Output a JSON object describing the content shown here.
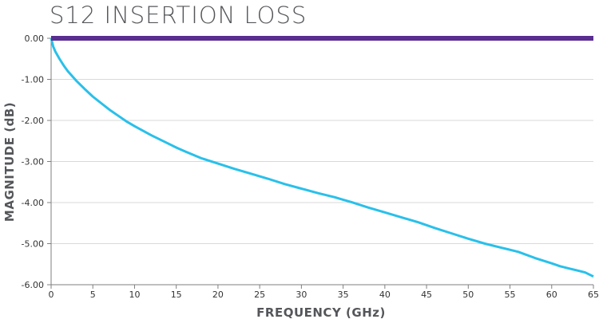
{
  "chart_data": {
    "type": "line",
    "title": "S12 INSERTION LOSS",
    "xlabel": "FREQUENCY (GHz)",
    "ylabel": "MAGNITUDE (dB)",
    "xlim": [
      0,
      65
    ],
    "ylim": [
      -6.0,
      0.0
    ],
    "x_ticks": [
      0,
      5,
      10,
      15,
      20,
      25,
      30,
      35,
      40,
      45,
      50,
      55,
      60,
      65
    ],
    "y_ticks": [
      0.0,
      -1.0,
      -2.0,
      -3.0,
      -4.0,
      -5.0,
      -6.0
    ],
    "x_tick_labels": [
      "0",
      "5",
      "10",
      "15",
      "20",
      "25",
      "30",
      "35",
      "40",
      "45",
      "50",
      "55",
      "60",
      "65"
    ],
    "y_tick_labels": [
      "0.00",
      "-1.00",
      "-2.00",
      "-3.00",
      "-4.00",
      "-5.00",
      "-6.00"
    ],
    "grid": "horizontal",
    "series": [
      {
        "color": "#29c0ea",
        "x": [
          0,
          0.25,
          0.5,
          1,
          1.5,
          2,
          3,
          4,
          5,
          6,
          7,
          8,
          9,
          10,
          12,
          14,
          15,
          16,
          18,
          20,
          22,
          24,
          25,
          26,
          28,
          30,
          32,
          34,
          35,
          36,
          38,
          40,
          42,
          44,
          45,
          46,
          48,
          50,
          52,
          54,
          55,
          56,
          58,
          60,
          61,
          62,
          63,
          64,
          65
        ],
        "y": [
          0.0,
          -0.2,
          -0.32,
          -0.5,
          -0.66,
          -0.8,
          -1.03,
          -1.23,
          -1.42,
          -1.58,
          -1.74,
          -1.88,
          -2.02,
          -2.14,
          -2.36,
          -2.56,
          -2.66,
          -2.75,
          -2.92,
          -3.05,
          -3.18,
          -3.3,
          -3.36,
          -3.42,
          -3.55,
          -3.66,
          -3.77,
          -3.87,
          -3.93,
          -3.99,
          -4.12,
          -4.24,
          -4.36,
          -4.48,
          -4.55,
          -4.62,
          -4.75,
          -4.88,
          -5.0,
          -5.1,
          -5.15,
          -5.2,
          -5.35,
          -5.48,
          -5.55,
          -5.6,
          -5.65,
          -5.7,
          -5.8
        ]
      },
      {
        "color": "#5a2d91",
        "x": [
          0,
          65
        ],
        "y": [
          0.0,
          0.0
        ]
      }
    ]
  },
  "colors": {
    "grid": "#d9d9d9",
    "axis": "#7f7f7f"
  }
}
